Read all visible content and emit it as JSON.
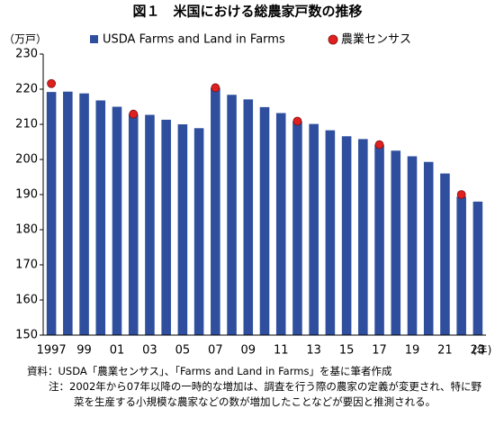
{
  "chart_data": {
    "type": "bar",
    "title": "図１　米国における総農家戸数の推移",
    "y_label": "（万戸）",
    "x_label": "(年)",
    "categories": [
      "1997",
      null,
      "99",
      null,
      "01",
      null,
      "03",
      null,
      "05",
      null,
      "07",
      null,
      "09",
      null,
      "11",
      null,
      "13",
      null,
      "15",
      null,
      "17",
      null,
      "19",
      null,
      "21",
      null,
      "23"
    ],
    "series": [
      {
        "name": "USDA Farms and Land in Farms",
        "color": "#2f4f9e",
        "kind": "bar",
        "values": [
          219.2,
          219.3,
          218.8,
          216.8,
          215.0,
          212.9,
          212.7,
          211.3,
          210.0,
          208.9,
          220.4,
          218.4,
          217.1,
          214.9,
          213.2,
          210.9,
          210.1,
          208.3,
          206.6,
          205.8,
          204.2,
          202.5,
          200.9,
          199.3,
          196.0,
          189.4,
          188.0
        ]
      },
      {
        "name": "農業センサス",
        "color": "#e0201e",
        "kind": "dot",
        "values": [
          221.6,
          null,
          null,
          null,
          null,
          212.9,
          null,
          null,
          null,
          null,
          220.4,
          null,
          null,
          null,
          null,
          210.9,
          null,
          null,
          null,
          null,
          204.2,
          null,
          null,
          null,
          null,
          190.0,
          null
        ]
      }
    ],
    "ylim": [
      150,
      230
    ],
    "yticks": [
      150,
      160,
      170,
      180,
      190,
      200,
      210,
      220,
      230
    ],
    "grid": false,
    "source": "資料：USDA「農業センサス」、「Farms and Land in Farms」を基に筆者作成",
    "note": "注：2002年から07年以降の一時的な増加は、調査を行う際の農家の定義が変更され、特に野菜を生産する小規模な農家などの数が増加したことなどが要因と推測される。"
  }
}
